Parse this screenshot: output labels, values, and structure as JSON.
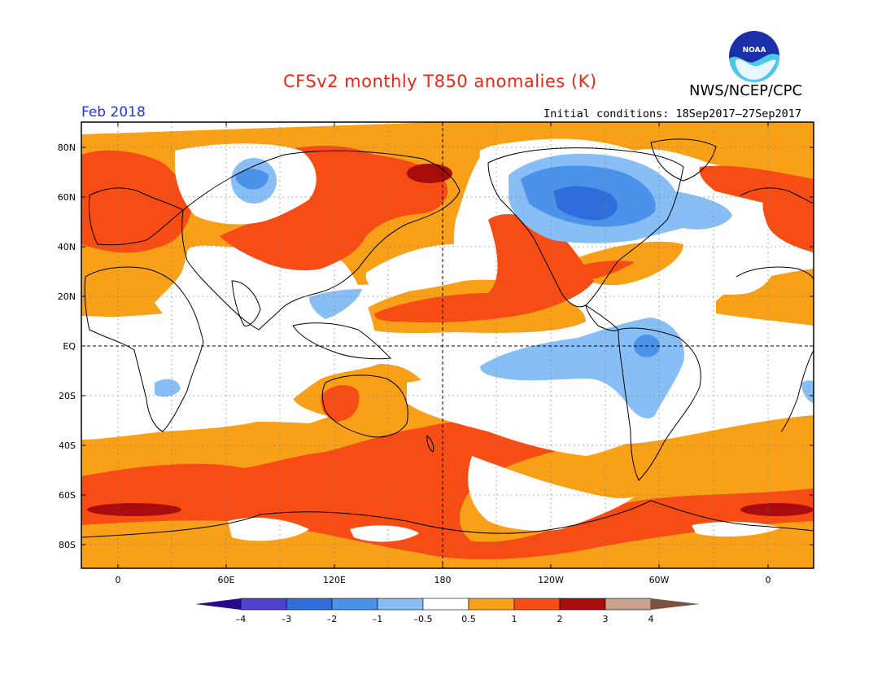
{
  "header": {
    "title": "CFSv2 monthly T850 anomalies (K)",
    "agency": "NWS/NCEP/CPC",
    "logo_text": "NOAA",
    "period": "Feb 2018",
    "initial_conditions": "Initial conditions: 18Sep2017–27Sep2017"
  },
  "map": {
    "projection": "cylindrical equidistant",
    "lon_center": 180,
    "lat_ticks": [
      "80N",
      "60N",
      "40N",
      "20N",
      "EQ",
      "20S",
      "40S",
      "60S",
      "80S"
    ],
    "lon_ticks": [
      "0",
      "60E",
      "120E",
      "180",
      "120W",
      "60W",
      "0"
    ],
    "grid": "dotted every 30° lon / 20° lat",
    "reference_lines": [
      "equator",
      "180 meridian"
    ]
  },
  "colorbar": {
    "labels": [
      "–4",
      "–3",
      "–2",
      "–1",
      "–0.5",
      "0.5",
      "1",
      "2",
      "3",
      "4"
    ],
    "colors": [
      "#2a0a8c",
      "#4f42d0",
      "#2f6ddc",
      "#4b92ea",
      "#86bef5",
      "#ffffff",
      "#f8a018",
      "#f74c14",
      "#a80c0c",
      "#c9a08c",
      "#7a5240"
    ]
  }
}
